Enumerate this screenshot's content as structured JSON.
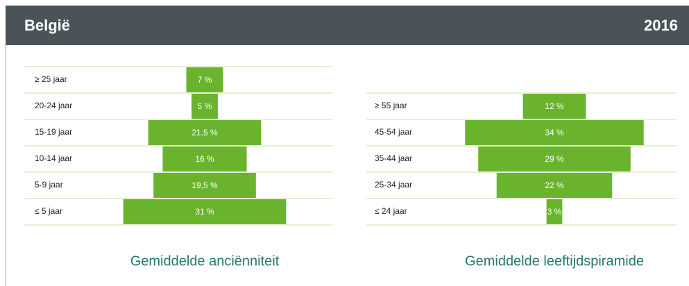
{
  "header": {
    "title": "België",
    "year": "2016"
  },
  "chart_data": [
    {
      "type": "pyramid",
      "title": "Gemiddelde anciënniteit",
      "categories": [
        "≥ 25 jaar",
        "20-24 jaar",
        "15-19 jaar",
        "10-14 jaar",
        "5-9 jaar",
        "≤ 5 jaar"
      ],
      "values": [
        7,
        5,
        21.5,
        16,
        19.5,
        31
      ],
      "value_labels": [
        "7 %",
        "5 %",
        "21,5 %",
        "16 %",
        "19,5 %",
        "31 %"
      ],
      "color": "#6ab42d"
    },
    {
      "type": "pyramid",
      "title": "Gemiddelde leeftijdspiramide",
      "categories": [
        "≥ 55 jaar",
        "45-54 jaar",
        "35-44 jaar",
        "25-34 jaar",
        "≤ 24 jaar"
      ],
      "values": [
        12,
        34,
        29,
        22,
        3
      ],
      "value_labels": [
        "12 %",
        "34 %",
        "29 %",
        "22 %",
        "3 %"
      ],
      "color": "#6ab42d"
    }
  ]
}
